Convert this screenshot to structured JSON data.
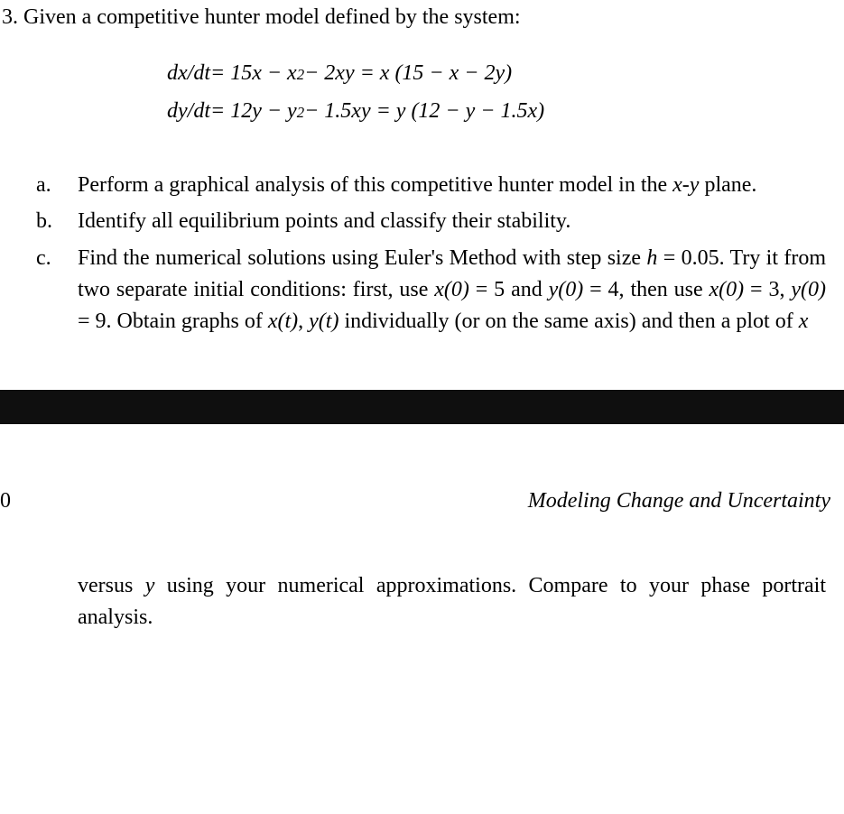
{
  "problem": {
    "number": "3.",
    "intro": "Given a competitive hunter model defined by the system:"
  },
  "equations": {
    "eq1_lhs": "dx/dt",
    "eq1_mid": " = 15x − x",
    "eq1_sup1": "2",
    "eq1_mid2": " − 2xy = x (15 − x − 2y)",
    "eq2_lhs": "dy/dt",
    "eq2_mid": " = 12y − y",
    "eq2_sup1": "2",
    "eq2_mid2": " − 1.5xy = y (12 − y − 1.5x)"
  },
  "parts": {
    "a": {
      "label": "a.",
      "text_pre": "Perform a graphical analysis of this competitive hunter model in the ",
      "text_italic": "x-y",
      "text_post": " plane."
    },
    "b": {
      "label": "b.",
      "text": "Identify all equilibrium points and classify their stability."
    },
    "c": {
      "label": "c.",
      "text1": "Find the numerical solutions using Euler's Method with step size ",
      "h_eq": "h",
      "h_val": " = 0.05. Try it from two separate initial conditions: first, use ",
      "x0": "x(0)",
      "x0_val": " = 5 and ",
      "y0": "y(0)",
      "y0_val": " = 4, then use ",
      "x0_2": "x(0)",
      "x0_2_val": " = 3, ",
      "y0_2": "y(0)",
      "y0_2_val": " = 9. Obtain graphs of ",
      "xt": "x(t)",
      "comma": ", ",
      "yt": "y(t)",
      "text2": " individually (or on the same axis) and then a plot of ",
      "x_var": "x"
    }
  },
  "page": {
    "number": "0",
    "book_title": "Modeling Change and Uncertainty"
  },
  "continuation": {
    "pre": "versus ",
    "y_var": "y",
    "post": " using your numerical approximations. Compare to your phase portrait analysis."
  }
}
